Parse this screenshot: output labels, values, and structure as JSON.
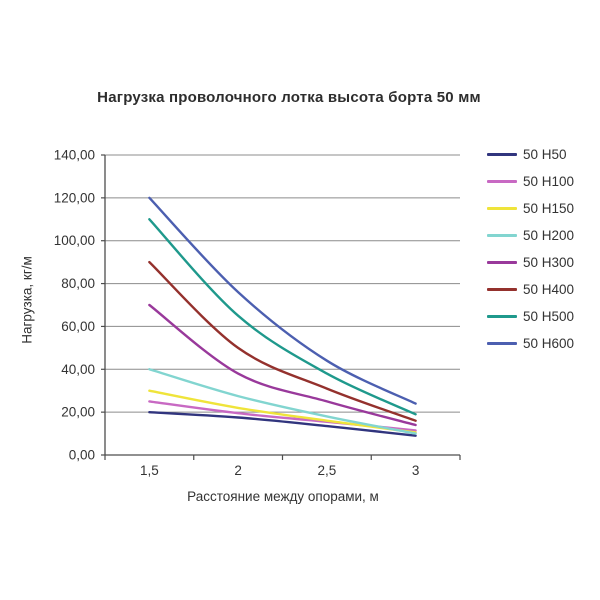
{
  "title": "Нагрузка проволочного лотка высота борта 50 мм",
  "chart_data": {
    "type": "line",
    "title": "Нагрузка проволочного лотка высота борта 50 мм",
    "xlabel": "Расстояние между опорами, м",
    "ylabel": "Нагрузка, кг/м",
    "x": [
      1.5,
      2,
      2.5,
      3
    ],
    "x_tick_labels": [
      "1,5",
      "2",
      "2,5",
      "3"
    ],
    "ylim": [
      0,
      140
    ],
    "y_tick_step": 20,
    "y_tick_labels": [
      "0,00",
      "20,00",
      "40,00",
      "60,00",
      "80,00",
      "100,00",
      "120,00",
      "140,00"
    ],
    "grid": "horizontal",
    "legend_position": "right",
    "series": [
      {
        "name": "50 Н50",
        "color": "#31357e",
        "values": [
          20,
          17.5,
          13.5,
          9
        ]
      },
      {
        "name": "50 Н100",
        "color": "#c869c3",
        "values": [
          25,
          19.5,
          15.5,
          11.5
        ]
      },
      {
        "name": "50 Н150",
        "color": "#efe43a",
        "values": [
          30,
          22,
          16,
          10.5
        ]
      },
      {
        "name": "50 Н200",
        "color": "#82d5d0",
        "values": [
          40,
          27.5,
          18,
          10
        ]
      },
      {
        "name": "50 Н300",
        "color": "#99399b",
        "values": [
          70,
          38,
          25,
          14
        ]
      },
      {
        "name": "50 Н400",
        "color": "#94312d",
        "values": [
          90,
          50,
          31,
          16
        ]
      },
      {
        "name": "50 Н500",
        "color": "#1f998c",
        "values": [
          110,
          65,
          38,
          19
        ]
      },
      {
        "name": "50 Н600",
        "color": "#4c5fb0",
        "values": [
          120,
          76,
          44,
          24
        ]
      }
    ],
    "style": {
      "grid_color": "#8c8c8c",
      "axis_color": "#4d4d4d",
      "line_width": 2.4
    }
  }
}
